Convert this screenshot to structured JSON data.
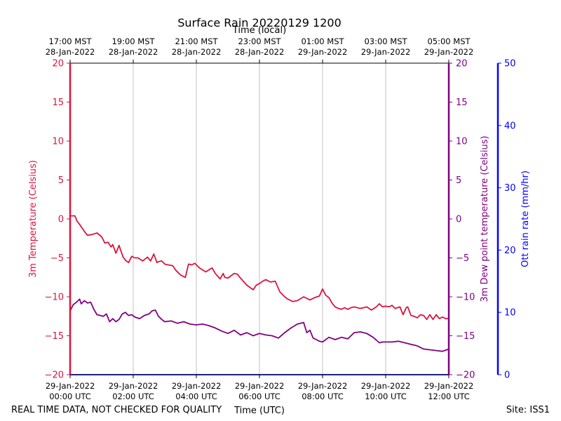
{
  "chart_data": {
    "type": "line",
    "title": "Surface Rain 20220129 1200",
    "top_axis_label": "Time (local)",
    "xlabel": "Time (UTC)",
    "footer_left": "REAL TIME DATA, NOT CHECKED FOR QUALITY",
    "footer_right": "Site: ISS1",
    "x_range_hours": [
      0,
      12
    ],
    "bottom_ticks": [
      {
        "h": 0,
        "date": "29-Jan-2022",
        "time": "00:00 UTC"
      },
      {
        "h": 2,
        "date": "29-Jan-2022",
        "time": "02:00 UTC"
      },
      {
        "h": 4,
        "date": "29-Jan-2022",
        "time": "04:00 UTC"
      },
      {
        "h": 6,
        "date": "29-Jan-2022",
        "time": "06:00 UTC"
      },
      {
        "h": 8,
        "date": "29-Jan-2022",
        "time": "08:00 UTC"
      },
      {
        "h": 10,
        "date": "29-Jan-2022",
        "time": "10:00 UTC"
      },
      {
        "h": 12,
        "date": "29-Jan-2022",
        "time": "12:00 UTC"
      }
    ],
    "top_ticks": [
      {
        "h": 0,
        "time": "17:00 MST",
        "date": "28-Jan-2022"
      },
      {
        "h": 2,
        "time": "19:00 MST",
        "date": "28-Jan-2022"
      },
      {
        "h": 4,
        "time": "21:00 MST",
        "date": "28-Jan-2022"
      },
      {
        "h": 6,
        "time": "23:00 MST",
        "date": "28-Jan-2022"
      },
      {
        "h": 8,
        "time": "01:00 MST",
        "date": "29-Jan-2022"
      },
      {
        "h": 10,
        "time": "03:00 MST",
        "date": "29-Jan-2022"
      },
      {
        "h": 12,
        "time": "05:00 MST",
        "date": "29-Jan-2022"
      }
    ],
    "y_left": {
      "label": "3m Temperature (Celsius)",
      "range": [
        -20,
        20
      ],
      "ticks": [
        20,
        15,
        10,
        5,
        0,
        -5,
        -10,
        -15,
        -20
      ],
      "tick_labels": [
        "20",
        "15",
        "10",
        "5",
        "0",
        "−5",
        "−10",
        "−15",
        "−20"
      ],
      "color": "#dc143c"
    },
    "y_right1": {
      "label": "3m Dew point temperature (Celsius)",
      "range": [
        -20,
        20
      ],
      "ticks": [
        20,
        15,
        10,
        5,
        0,
        -5,
        -10,
        -15,
        -20
      ],
      "tick_labels": [
        "20",
        "15",
        "10",
        "5",
        "0",
        "−5",
        "−10",
        "−15",
        "−20"
      ],
      "color": "#800080"
    },
    "y_right2": {
      "label": "Ott rain rate (mm/hr)",
      "range": [
        0,
        50
      ],
      "ticks": [
        50,
        40,
        30,
        20,
        10,
        0
      ],
      "tick_labels": [
        "50",
        "40",
        "30",
        "20",
        "10",
        "0"
      ],
      "color": "#0000ff"
    },
    "series": [
      {
        "name": "3m Temperature",
        "color": "#dc143c",
        "x": [
          0,
          0.15,
          0.22,
          0.3,
          0.45,
          0.55,
          0.7,
          0.85,
          1.0,
          1.1,
          1.2,
          1.3,
          1.35,
          1.45,
          1.55,
          1.6,
          1.68,
          1.75,
          1.85,
          1.95,
          2.05,
          2.15,
          2.3,
          2.45,
          2.55,
          2.65,
          2.75,
          2.8,
          2.9,
          3.0,
          3.1,
          3.25,
          3.35,
          3.5,
          3.65,
          3.75,
          3.85,
          3.95,
          4.0,
          4.1,
          4.3,
          4.45,
          4.5,
          4.6,
          4.75,
          4.85,
          4.9,
          5.0,
          5.1,
          5.2,
          5.3,
          5.4,
          5.6,
          5.8,
          5.9,
          6.0,
          6.1,
          6.2,
          6.35,
          6.5,
          6.65,
          6.8,
          6.9,
          7.0,
          7.05,
          7.2,
          7.4,
          7.6,
          7.75,
          7.9,
          8.0,
          8.1,
          8.2,
          8.3,
          8.4,
          8.5,
          8.6,
          8.7,
          8.8,
          8.9,
          9.0,
          9.2,
          9.4,
          9.55,
          9.7,
          9.8,
          9.9,
          10.0,
          10.1,
          10.2,
          10.3,
          10.45,
          10.55,
          10.65,
          10.7,
          10.8,
          10.9,
          11.0,
          11.1,
          11.2,
          11.3,
          11.4,
          11.5,
          11.6,
          11.7,
          11.8,
          11.9,
          12.0
        ],
        "y": [
          0.4,
          0.4,
          -0.3,
          -0.7,
          -1.6,
          -2.1,
          -2.0,
          -1.8,
          -2.3,
          -3.1,
          -3.0,
          -3.6,
          -3.3,
          -4.4,
          -3.4,
          -4.0,
          -4.9,
          -5.3,
          -5.6,
          -4.8,
          -5.0,
          -5.0,
          -5.4,
          -4.9,
          -5.4,
          -4.5,
          -5.6,
          -5.5,
          -5.4,
          -5.8,
          -5.9,
          -6.0,
          -6.6,
          -7.2,
          -7.5,
          -5.8,
          -5.9,
          -5.7,
          -5.9,
          -6.3,
          -6.8,
          -6.4,
          -6.3,
          -7.0,
          -7.7,
          -7.0,
          -7.5,
          -7.6,
          -7.3,
          -7.0,
          -7.1,
          -7.6,
          -8.5,
          -9.1,
          -8.5,
          -8.3,
          -8.0,
          -7.8,
          -8.1,
          -8.0,
          -9.4,
          -10.0,
          -10.3,
          -10.5,
          -10.6,
          -10.5,
          -10.0,
          -10.4,
          -10.1,
          -9.9,
          -9.0,
          -9.8,
          -10.1,
          -10.8,
          -11.3,
          -11.5,
          -11.6,
          -11.4,
          -11.6,
          -11.4,
          -11.3,
          -11.5,
          -11.3,
          -11.7,
          -11.3,
          -10.9,
          -11.3,
          -11.2,
          -11.3,
          -11.1,
          -11.5,
          -11.3,
          -12.3,
          -11.4,
          -11.3,
          -12.4,
          -12.5,
          -12.7,
          -12.3,
          -12.4,
          -12.9,
          -12.3,
          -12.9,
          -12.3,
          -12.8,
          -12.6,
          -12.8,
          -12.8
        ]
      },
      {
        "name": "3m Dew point temperature",
        "color": "#800080",
        "x": [
          0,
          0.1,
          0.2,
          0.3,
          0.35,
          0.45,
          0.55,
          0.65,
          0.75,
          0.85,
          0.95,
          1.05,
          1.15,
          1.25,
          1.35,
          1.45,
          1.55,
          1.65,
          1.75,
          1.85,
          1.95,
          2.05,
          2.2,
          2.35,
          2.5,
          2.6,
          2.7,
          2.8,
          2.9,
          3.0,
          3.2,
          3.4,
          3.6,
          3.8,
          4.0,
          4.2,
          4.4,
          4.6,
          4.8,
          5.0,
          5.2,
          5.4,
          5.6,
          5.8,
          6.0,
          6.2,
          6.4,
          6.6,
          6.8,
          7.0,
          7.2,
          7.4,
          7.5,
          7.6,
          7.7,
          7.8,
          7.9,
          8.0,
          8.2,
          8.4,
          8.6,
          8.8,
          9.0,
          9.2,
          9.4,
          9.6,
          9.8,
          9.9,
          10.0,
          10.2,
          10.4,
          10.6,
          10.8,
          11.0,
          11.2,
          11.4,
          11.6,
          11.8,
          12.0
        ],
        "y": [
          -11.8,
          -11.0,
          -10.7,
          -10.3,
          -10.9,
          -10.5,
          -10.8,
          -10.7,
          -11.6,
          -12.3,
          -12.4,
          -12.5,
          -12.2,
          -13.2,
          -12.8,
          -13.2,
          -12.9,
          -12.2,
          -12.0,
          -12.4,
          -12.3,
          -12.6,
          -12.8,
          -12.4,
          -12.2,
          -11.8,
          -11.7,
          -12.5,
          -12.9,
          -13.2,
          -13.1,
          -13.4,
          -13.2,
          -13.5,
          -13.6,
          -13.5,
          -13.7,
          -14.0,
          -14.4,
          -14.7,
          -14.3,
          -14.9,
          -14.6,
          -15.0,
          -14.7,
          -14.9,
          -15.0,
          -15.3,
          -14.6,
          -14.0,
          -13.5,
          -13.3,
          -14.6,
          -14.3,
          -15.3,
          -15.5,
          -15.7,
          -15.8,
          -15.2,
          -15.5,
          -15.2,
          -15.4,
          -14.6,
          -14.5,
          -14.7,
          -15.2,
          -15.9,
          -15.8,
          -15.8,
          -15.8,
          -15.7,
          -15.9,
          -16.1,
          -16.3,
          -16.7,
          -16.8,
          -16.9,
          -17.0,
          -16.7
        ]
      },
      {
        "name": "Ott rain rate",
        "color": "#0000ff",
        "x": [
          0,
          12
        ],
        "y": [
          0,
          0
        ]
      }
    ]
  }
}
